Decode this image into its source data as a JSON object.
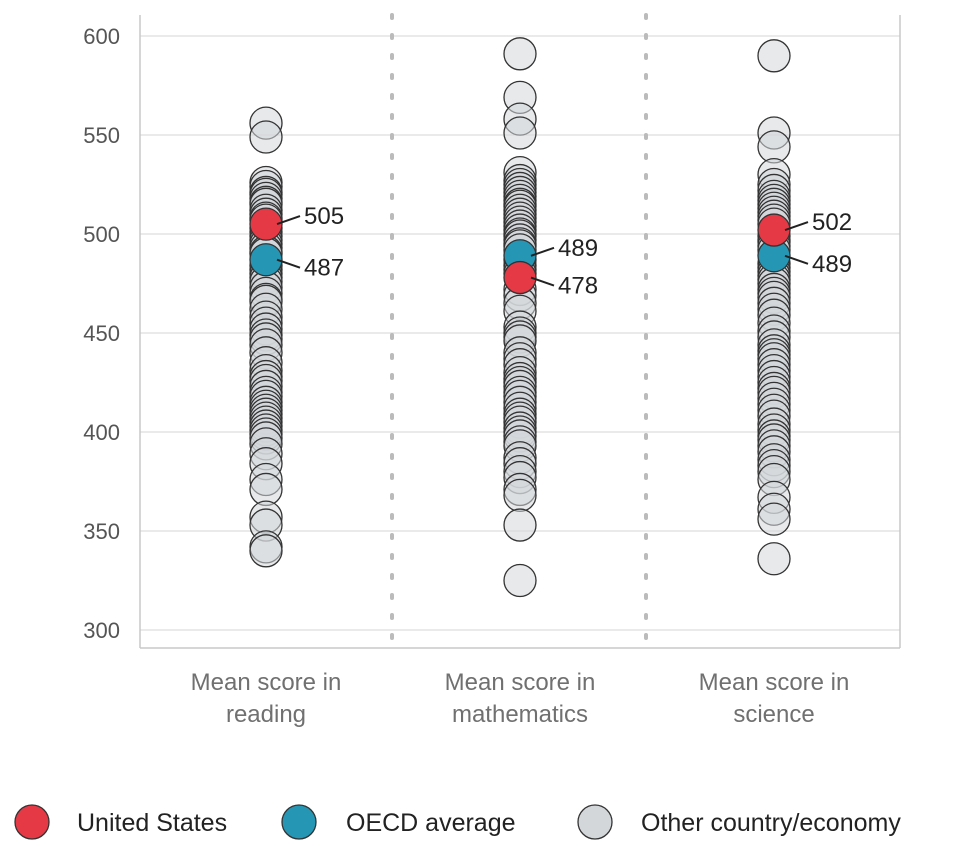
{
  "colors": {
    "united_states": "#e63946",
    "oecd_average": "#2596b4",
    "other": "#d3d7da",
    "point_stroke": "#333333",
    "gridline": "#dddddd",
    "divider": "#bbbbbb",
    "axis_frame": "#c8c8c8"
  },
  "chart_data": {
    "type": "scatter",
    "title": "",
    "xlabel": "",
    "ylabel": "",
    "ylim": [
      300,
      600
    ],
    "yticks": [
      300,
      350,
      400,
      450,
      500,
      550,
      600
    ],
    "grid": true,
    "legend_position": "bottom",
    "categories": [
      {
        "label": "Mean score in\nreading",
        "label_lines": [
          "Mean score in",
          "reading"
        ]
      },
      {
        "label": "Mean score in\nmathematics",
        "label_lines": [
          "Mean score in",
          "mathematics"
        ]
      },
      {
        "label": "Mean score in\nscience",
        "label_lines": [
          "Mean score in",
          "science"
        ]
      }
    ],
    "series": [
      {
        "name": "Other country/economy",
        "values": [
          [
            556,
            549,
            526,
            524,
            521,
            520,
            518,
            516,
            515,
            512,
            510,
            508,
            507,
            503,
            501,
            499,
            497,
            495,
            493,
            491,
            490,
            484,
            482,
            480,
            478,
            476,
            473,
            470,
            467,
            466,
            462,
            458,
            455,
            452,
            449,
            447,
            444,
            440,
            435,
            431,
            428,
            426,
            423,
            420,
            418,
            415,
            413,
            411,
            409,
            407,
            405,
            403,
            401,
            399,
            397,
            394,
            389,
            384,
            376,
            371,
            357,
            353,
            342,
            340
          ],
          [
            591,
            569,
            558,
            551,
            531,
            527,
            525,
            523,
            521,
            519,
            517,
            515,
            514,
            512,
            510,
            508,
            506,
            504,
            502,
            500,
            499,
            497,
            495,
            494,
            492,
            487,
            484,
            482,
            480,
            472,
            469,
            465,
            461,
            453,
            450,
            448,
            446,
            440,
            437,
            434,
            430,
            427,
            425,
            423,
            420,
            418,
            415,
            412,
            409,
            407,
            405,
            402,
            400,
            398,
            395,
            393,
            387,
            384,
            380,
            377,
            371,
            368,
            353,
            325
          ],
          [
            590,
            551,
            544,
            530,
            525,
            522,
            519,
            517,
            515,
            513,
            511,
            509,
            507,
            505,
            499,
            497,
            496,
            494,
            492,
            485,
            483,
            481,
            479,
            477,
            475,
            472,
            470,
            468,
            465,
            462,
            459,
            455,
            451,
            448,
            444,
            441,
            439,
            437,
            434,
            431,
            428,
            425,
            422,
            420,
            417,
            414,
            411,
            408,
            404,
            401,
            398,
            396,
            393,
            390,
            386,
            383,
            380,
            376,
            367,
            361,
            356,
            336
          ]
        ]
      },
      {
        "name": "OECD average",
        "values": [
          487,
          489,
          489
        ],
        "labels": [
          "487",
          "489",
          "489"
        ]
      },
      {
        "name": "United States",
        "values": [
          505,
          478,
          502
        ],
        "labels": [
          "505",
          "478",
          "502"
        ]
      }
    ]
  },
  "legend": [
    {
      "label": "United States",
      "series": "United States"
    },
    {
      "label": "OECD average",
      "series": "OECD average"
    },
    {
      "label": "Other country/economy",
      "series": "Other country/economy"
    }
  ]
}
